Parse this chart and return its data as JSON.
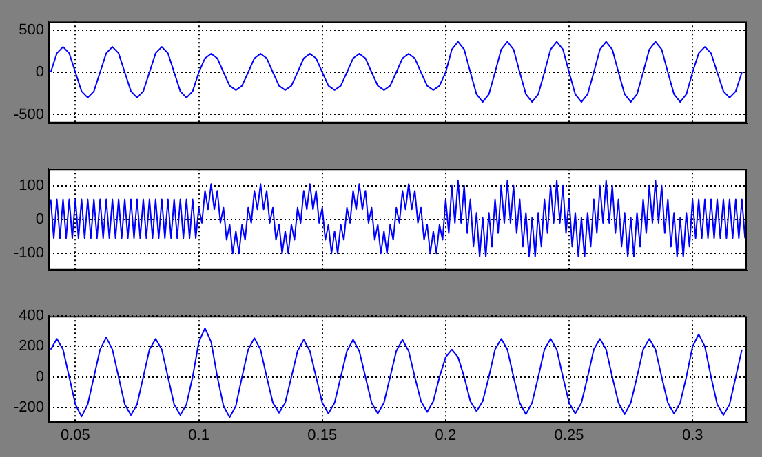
{
  "chart_data": [
    {
      "type": "line",
      "color": "#0000ff",
      "marker": "none",
      "line_style": "solid",
      "grid": true,
      "tick_labels": "y",
      "xlim": [
        0.039,
        0.322
      ],
      "xticks": [
        0.05,
        0.1,
        0.15,
        0.2,
        0.25,
        0.3
      ],
      "ylim": [
        -600,
        600
      ],
      "yticks": [
        -500,
        0,
        500
      ],
      "x": [
        0.04,
        0.0425,
        0.045,
        0.0475,
        0.05,
        0.0525,
        0.055,
        0.0575,
        0.06,
        0.0625,
        0.065,
        0.0675,
        0.07,
        0.0725,
        0.075,
        0.0775,
        0.08,
        0.0825,
        0.085,
        0.0875,
        0.09,
        0.0925,
        0.095,
        0.0975,
        0.1,
        0.1025,
        0.105,
        0.1075,
        0.11,
        0.1125,
        0.115,
        0.1175,
        0.12,
        0.1225,
        0.125,
        0.1275,
        0.13,
        0.1325,
        0.135,
        0.1375,
        0.14,
        0.1425,
        0.145,
        0.1475,
        0.15,
        0.1525,
        0.155,
        0.1575,
        0.16,
        0.1625,
        0.165,
        0.1675,
        0.17,
        0.1725,
        0.175,
        0.1775,
        0.18,
        0.1825,
        0.185,
        0.1875,
        0.19,
        0.1925,
        0.195,
        0.1975,
        0.2,
        0.2025,
        0.205,
        0.2075,
        0.21,
        0.2125,
        0.215,
        0.2175,
        0.22,
        0.2225,
        0.225,
        0.2275,
        0.23,
        0.2325,
        0.235,
        0.2375,
        0.24,
        0.2425,
        0.245,
        0.2475,
        0.25,
        0.2525,
        0.255,
        0.2575,
        0.26,
        0.2625,
        0.265,
        0.2675,
        0.27,
        0.2725,
        0.275,
        0.2775,
        0.28,
        0.2825,
        0.285,
        0.2875,
        0.29,
        0.2925,
        0.295,
        0.2975,
        0.3,
        0.3025,
        0.305,
        0.3075,
        0.31,
        0.3125,
        0.315,
        0.3175,
        0.32
      ],
      "values": [
        0,
        225,
        300,
        225,
        0,
        -225,
        -300,
        -225,
        0,
        225,
        300,
        225,
        0,
        -225,
        -300,
        -225,
        0,
        225,
        300,
        225,
        0,
        -225,
        -300,
        -225,
        0,
        165,
        220,
        165,
        0,
        -160,
        -210,
        -160,
        0,
        165,
        220,
        165,
        0,
        -160,
        -210,
        -160,
        0,
        165,
        220,
        165,
        0,
        -160,
        -210,
        -160,
        0,
        165,
        220,
        165,
        0,
        -160,
        -210,
        -160,
        0,
        165,
        220,
        165,
        0,
        -160,
        -210,
        -160,
        0,
        270,
        360,
        270,
        0,
        -260,
        -350,
        -260,
        0,
        270,
        360,
        270,
        0,
        -260,
        -350,
        -260,
        0,
        270,
        360,
        270,
        0,
        -260,
        -350,
        -260,
        0,
        270,
        360,
        270,
        0,
        -260,
        -350,
        -260,
        0,
        270,
        360,
        270,
        0,
        -260,
        -350,
        -260,
        0,
        225,
        300,
        225,
        0,
        -225,
        -300,
        -225,
        0
      ]
    },
    {
      "type": "line",
      "color": "#0000ff",
      "marker": "none",
      "line_style": "solid",
      "grid": true,
      "tick_labels": "y",
      "xlim": [
        0.039,
        0.322
      ],
      "xticks": [
        0.05,
        0.1,
        0.15,
        0.2,
        0.25,
        0.3
      ],
      "ylim": [
        -150,
        150
      ],
      "yticks": [
        -100,
        0,
        100
      ],
      "x": [
        0.04,
        0.04125,
        0.0425,
        0.04375,
        0.045,
        0.04625,
        0.0475,
        0.04875,
        0.05,
        0.05125,
        0.0525,
        0.05375,
        0.055,
        0.05625,
        0.0575,
        0.05875,
        0.06,
        0.06125,
        0.0625,
        0.06375,
        0.065,
        0.06625,
        0.0675,
        0.06875,
        0.07,
        0.07125,
        0.0725,
        0.07375,
        0.075,
        0.07625,
        0.0775,
        0.07875,
        0.08,
        0.08125,
        0.0825,
        0.08375,
        0.085,
        0.08625,
        0.0875,
        0.08875,
        0.09,
        0.09125,
        0.0925,
        0.09375,
        0.095,
        0.09625,
        0.0975,
        0.09875,
        0.1,
        0.10125,
        0.1025,
        0.10375,
        0.105,
        0.10625,
        0.1075,
        0.10875,
        0.11,
        0.11125,
        0.1125,
        0.11375,
        0.115,
        0.11625,
        0.1175,
        0.11875,
        0.12,
        0.12125,
        0.1225,
        0.12375,
        0.125,
        0.12625,
        0.1275,
        0.12875,
        0.13,
        0.13125,
        0.1325,
        0.13375,
        0.135,
        0.13625,
        0.1375,
        0.13875,
        0.14,
        0.14125,
        0.1425,
        0.14375,
        0.145,
        0.14625,
        0.1475,
        0.14875,
        0.15,
        0.15125,
        0.1525,
        0.15375,
        0.155,
        0.15625,
        0.1575,
        0.15875,
        0.16,
        0.16125,
        0.1625,
        0.16375,
        0.165,
        0.16625,
        0.1675,
        0.16875,
        0.17,
        0.17125,
        0.1725,
        0.17375,
        0.175,
        0.17625,
        0.1775,
        0.17875,
        0.18,
        0.18125,
        0.1825,
        0.18375,
        0.185,
        0.18625,
        0.1875,
        0.18875,
        0.19,
        0.19125,
        0.1925,
        0.19375,
        0.195,
        0.19625,
        0.1975,
        0.19875,
        0.2,
        0.20125,
        0.2025,
        0.20375,
        0.205,
        0.20625,
        0.2075,
        0.20875,
        0.21,
        0.21125,
        0.2125,
        0.21375,
        0.215,
        0.21625,
        0.2175,
        0.21875,
        0.22,
        0.22125,
        0.2225,
        0.22375,
        0.225,
        0.22625,
        0.2275,
        0.22875,
        0.23,
        0.23125,
        0.2325,
        0.23375,
        0.235,
        0.23625,
        0.2375,
        0.23875,
        0.24,
        0.24125,
        0.2425,
        0.24375,
        0.245,
        0.24625,
        0.2475,
        0.24875,
        0.25,
        0.25125,
        0.2525,
        0.25375,
        0.255,
        0.25625,
        0.2575,
        0.25875,
        0.26,
        0.26125,
        0.2625,
        0.26375,
        0.265,
        0.26625,
        0.2675,
        0.26875,
        0.27,
        0.27125,
        0.2725,
        0.27375,
        0.275,
        0.27625,
        0.2775,
        0.27875,
        0.28,
        0.28125,
        0.2825,
        0.28375,
        0.285,
        0.28625,
        0.2875,
        0.28875,
        0.29,
        0.29125,
        0.2925,
        0.29375,
        0.295,
        0.29625,
        0.2975,
        0.29875,
        0.3,
        0.30125,
        0.3025,
        0.30375,
        0.305,
        0.30625,
        0.3075,
        0.30875,
        0.31,
        0.31125,
        0.3125,
        0.31375,
        0.315,
        0.31625,
        0.3175,
        0.31875,
        0.32,
        0.32125
      ],
      "values": [
        60,
        -55,
        60,
        -55,
        60,
        -55,
        60,
        -55,
        60,
        -55,
        60,
        -55,
        60,
        -55,
        60,
        -55,
        60,
        -55,
        60,
        -55,
        60,
        -55,
        60,
        -55,
        60,
        -55,
        60,
        -55,
        60,
        -55,
        60,
        -55,
        60,
        -55,
        60,
        -55,
        60,
        -55,
        60,
        -55,
        60,
        -55,
        60,
        -55,
        60,
        -55,
        60,
        -55,
        35,
        -10,
        85,
        30,
        105,
        30,
        85,
        -10,
        35,
        -60,
        -15,
        -100,
        -35,
        -100,
        -15,
        -60,
        35,
        -10,
        85,
        30,
        105,
        30,
        85,
        -10,
        35,
        -60,
        -15,
        -100,
        -35,
        -100,
        -15,
        -60,
        35,
        -10,
        85,
        30,
        105,
        30,
        85,
        -10,
        35,
        -60,
        -15,
        -100,
        -35,
        -100,
        -15,
        -60,
        35,
        -10,
        85,
        30,
        105,
        30,
        85,
        -10,
        35,
        -60,
        -15,
        -100,
        -35,
        -100,
        -15,
        -60,
        35,
        -10,
        85,
        30,
        105,
        30,
        85,
        -10,
        35,
        -60,
        -15,
        -100,
        -35,
        -100,
        -15,
        -60,
        60,
        -40,
        100,
        -10,
        115,
        -10,
        100,
        -40,
        60,
        -80,
        20,
        -110,
        5,
        -110,
        20,
        -80,
        60,
        -40,
        100,
        -10,
        115,
        -10,
        100,
        -40,
        60,
        -80,
        20,
        -110,
        5,
        -110,
        20,
        -80,
        60,
        -40,
        100,
        -10,
        115,
        -10,
        100,
        -40,
        60,
        -80,
        20,
        -110,
        5,
        -110,
        20,
        -80,
        60,
        -40,
        100,
        -10,
        115,
        -10,
        100,
        -40,
        60,
        -80,
        20,
        -110,
        5,
        -110,
        20,
        -80,
        60,
        -40,
        100,
        -10,
        115,
        -10,
        100,
        -40,
        60,
        -80,
        20,
        -110,
        5,
        -110,
        20,
        -80,
        60,
        -55,
        60,
        -55,
        60,
        -55,
        60,
        -55,
        60,
        -55,
        60,
        -55,
        60,
        -55,
        60,
        -55,
        60,
        -55
      ]
    },
    {
      "type": "line",
      "color": "#0000ff",
      "marker": "none",
      "line_style": "solid",
      "grid": true,
      "xlim": [
        0.039,
        0.322
      ],
      "xticks": [
        0.05,
        0.1,
        0.15,
        0.2,
        0.25,
        0.3
      ],
      "ylim": [
        -300,
        400
      ],
      "yticks": [
        -200,
        0,
        200,
        400
      ],
      "x": [
        0.04,
        0.0425,
        0.045,
        0.0475,
        0.05,
        0.0525,
        0.055,
        0.0575,
        0.06,
        0.0625,
        0.065,
        0.0675,
        0.07,
        0.0725,
        0.075,
        0.0775,
        0.08,
        0.0825,
        0.085,
        0.0875,
        0.09,
        0.0925,
        0.095,
        0.0975,
        0.1,
        0.1025,
        0.105,
        0.1075,
        0.11,
        0.1125,
        0.115,
        0.1175,
        0.12,
        0.1225,
        0.125,
        0.1275,
        0.13,
        0.1325,
        0.135,
        0.1375,
        0.14,
        0.1425,
        0.145,
        0.1475,
        0.15,
        0.1525,
        0.155,
        0.1575,
        0.16,
        0.1625,
        0.165,
        0.1675,
        0.17,
        0.1725,
        0.175,
        0.1775,
        0.18,
        0.1825,
        0.185,
        0.1875,
        0.19,
        0.1925,
        0.195,
        0.1975,
        0.2,
        0.2025,
        0.205,
        0.2075,
        0.21,
        0.2125,
        0.215,
        0.2175,
        0.22,
        0.2225,
        0.225,
        0.2275,
        0.23,
        0.2325,
        0.235,
        0.2375,
        0.24,
        0.2425,
        0.245,
        0.2475,
        0.25,
        0.2525,
        0.255,
        0.2575,
        0.26,
        0.2625,
        0.265,
        0.2675,
        0.27,
        0.2725,
        0.275,
        0.2775,
        0.28,
        0.2825,
        0.285,
        0.2875,
        0.29,
        0.2925,
        0.295,
        0.2975,
        0.3,
        0.3025,
        0.305,
        0.3075,
        0.31,
        0.3125,
        0.315,
        0.3175,
        0.32
      ],
      "values": [
        180,
        250,
        180,
        0,
        -180,
        -260,
        -180,
        0,
        180,
        260,
        180,
        0,
        -180,
        -250,
        -180,
        0,
        180,
        250,
        180,
        0,
        -180,
        -250,
        -180,
        0,
        230,
        320,
        230,
        0,
        -190,
        -265,
        -190,
        0,
        180,
        255,
        180,
        0,
        -170,
        -235,
        -170,
        0,
        170,
        245,
        170,
        0,
        -170,
        -240,
        -170,
        0,
        170,
        245,
        170,
        0,
        -170,
        -240,
        -170,
        0,
        170,
        245,
        170,
        0,
        -160,
        -230,
        -160,
        0,
        130,
        180,
        130,
        0,
        -160,
        -225,
        -160,
        0,
        180,
        250,
        180,
        0,
        -170,
        -245,
        -170,
        0,
        180,
        250,
        180,
        0,
        -170,
        -240,
        -170,
        0,
        180,
        250,
        180,
        0,
        -170,
        -245,
        -170,
        0,
        180,
        250,
        180,
        0,
        -170,
        -240,
        -170,
        0,
        200,
        280,
        200,
        0,
        -180,
        -250,
        -180,
        0,
        180
      ]
    }
  ]
}
